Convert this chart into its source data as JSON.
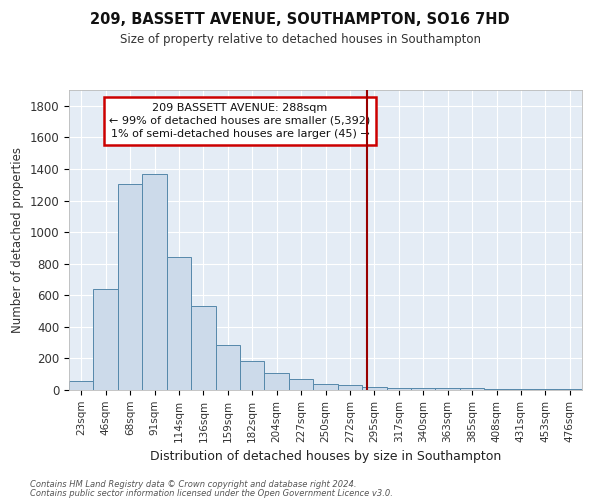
{
  "title": "209, BASSETT AVENUE, SOUTHAMPTON, SO16 7HD",
  "subtitle": "Size of property relative to detached houses in Southampton",
  "xlabel": "Distribution of detached houses by size in Southampton",
  "ylabel": "Number of detached properties",
  "bar_color": "#ccdaea",
  "bar_edge_color": "#5588aa",
  "bg_color": "#e4ecf5",
  "annotation_text": "209 BASSETT AVENUE: 288sqm\n← 99% of detached houses are smaller (5,392)\n1% of semi-detached houses are larger (45) →",
  "property_size": 288,
  "red_line_color": "#990000",
  "categories": [
    "23sqm",
    "46sqm",
    "68sqm",
    "91sqm",
    "114sqm",
    "136sqm",
    "159sqm",
    "182sqm",
    "204sqm",
    "227sqm",
    "250sqm",
    "272sqm",
    "295sqm",
    "317sqm",
    "340sqm",
    "363sqm",
    "385sqm",
    "408sqm",
    "431sqm",
    "453sqm",
    "476sqm"
  ],
  "values": [
    55,
    640,
    1305,
    1370,
    845,
    530,
    285,
    185,
    110,
    70,
    35,
    30,
    20,
    15,
    15,
    10,
    10,
    5,
    5,
    5,
    5
  ],
  "ylim": [
    0,
    1900
  ],
  "yticks": [
    0,
    200,
    400,
    600,
    800,
    1000,
    1200,
    1400,
    1600,
    1800
  ],
  "footer_line1": "Contains HM Land Registry data © Crown copyright and database right 2024.",
  "footer_line2": "Contains public sector information licensed under the Open Government Licence v3.0."
}
